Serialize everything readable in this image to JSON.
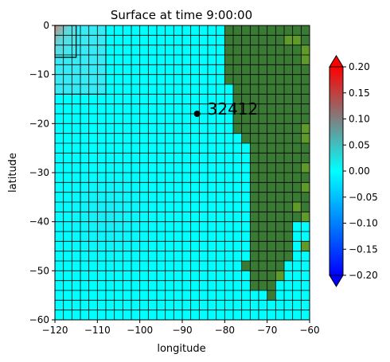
{
  "chart_data": {
    "type": "heatmap",
    "title": "Surface at time 9:00:00",
    "xlabel": "longitude",
    "ylabel": "latitude",
    "xlim": [
      -120,
      -60
    ],
    "ylim": [
      -60,
      0
    ],
    "xticks": [
      -120,
      -110,
      -100,
      -90,
      -80,
      -70,
      -60
    ],
    "yticks": [
      0,
      -10,
      -20,
      -30,
      -40,
      -50,
      -60
    ],
    "grid": true,
    "cell_size_deg": 2,
    "patches": [
      {
        "name": "coarse-patch",
        "lon": [
          -120,
          -108
        ],
        "lat": [
          -14,
          0
        ]
      },
      {
        "name": "fine-patch",
        "lon": [
          -120,
          -115
        ],
        "lat": [
          -6.5,
          0
        ]
      }
    ],
    "land_color": "#3a7a35",
    "land_boundary_lon_by_row": [
      {
        "lat_top": 0,
        "lat_bottom": -12,
        "lon_west": -80
      },
      {
        "lat_top": -12,
        "lat_bottom": -22,
        "lon_west": -78
      },
      {
        "lat_top": -22,
        "lat_bottom": -24,
        "lon_west": -76
      },
      {
        "lat_top": -24,
        "lat_bottom": -40,
        "lon_west": -74
      },
      {
        "lat_top": -40,
        "lat_bottom": -48,
        "lon_west": -74,
        "lon_east": -64
      },
      {
        "lat_top": -48,
        "lat_bottom": -50,
        "lon_west": -76,
        "lon_east": -66
      },
      {
        "lat_top": -50,
        "lat_bottom": -54,
        "lon_west": -74,
        "lon_east": -68
      },
      {
        "lat_top": -54,
        "lat_bottom": -56,
        "lon_west": -70,
        "lon_east": -68
      }
    ],
    "annotation": {
      "label": "32412",
      "lon": -86.5,
      "lat": -18
    }
  },
  "colorbar": {
    "range": [
      -0.2,
      0.2
    ],
    "ticks": [
      "0.20",
      "0.15",
      "0.10",
      "0.05",
      "0.00",
      "−0.05",
      "−0.10",
      "−0.15",
      "−0.20"
    ],
    "extend": "both",
    "colors": [
      "#0000ff",
      "#00ffff",
      "#ff0000"
    ]
  }
}
